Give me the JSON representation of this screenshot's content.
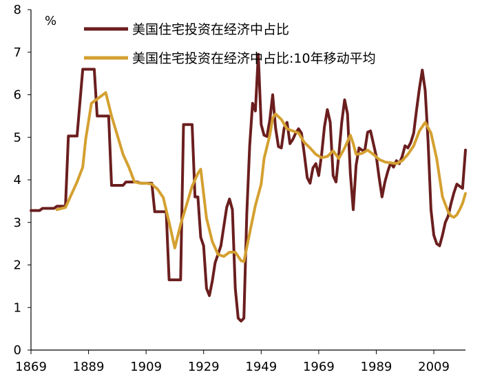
{
  "chart_data": {
    "type": "line",
    "y_unit": "%",
    "ylim": [
      0,
      8
    ],
    "xlim": [
      1869,
      2020
    ],
    "x_ticks": [
      1869,
      1889,
      1909,
      1929,
      1949,
      1969,
      1989,
      2009
    ],
    "y_ticks": [
      0,
      1,
      2,
      3,
      4,
      5,
      6,
      7,
      8
    ],
    "grid": false,
    "legend_position": "top",
    "colors": {
      "series_1": "#6b1e1e",
      "series_2": "#d4a030"
    },
    "series": [
      {
        "name": "美国住宅投资在经济中占比",
        "points": [
          [
            1869,
            3.28
          ],
          [
            1872,
            3.28
          ],
          [
            1873,
            3.33
          ],
          [
            1877,
            3.33
          ],
          [
            1878,
            3.38
          ],
          [
            1881,
            3.38
          ],
          [
            1882,
            5.03
          ],
          [
            1885,
            5.03
          ],
          [
            1887,
            6.6
          ],
          [
            1891,
            6.6
          ],
          [
            1892,
            5.5
          ],
          [
            1896,
            5.5
          ],
          [
            1897,
            3.87
          ],
          [
            1901,
            3.87
          ],
          [
            1902,
            3.95
          ],
          [
            1906,
            3.95
          ],
          [
            1907,
            3.92
          ],
          [
            1911,
            3.92
          ],
          [
            1912,
            3.25
          ],
          [
            1916,
            3.25
          ],
          [
            1917,
            1.65
          ],
          [
            1921,
            1.65
          ],
          [
            1922,
            5.3
          ],
          [
            1925,
            5.3
          ],
          [
            1926,
            3.6
          ],
          [
            1927,
            3.6
          ],
          [
            1928,
            2.65
          ],
          [
            1929,
            2.45
          ],
          [
            1930,
            1.45
          ],
          [
            1931,
            1.28
          ],
          [
            1932,
            1.62
          ],
          [
            1933,
            2.05
          ],
          [
            1934,
            2.25
          ],
          [
            1935,
            2.45
          ],
          [
            1936,
            2.9
          ],
          [
            1937,
            3.35
          ],
          [
            1938,
            3.55
          ],
          [
            1939,
            3.3
          ],
          [
            1940,
            1.45
          ],
          [
            1941,
            0.75
          ],
          [
            1942,
            0.68
          ],
          [
            1943,
            0.75
          ],
          [
            1944,
            3.2
          ],
          [
            1945,
            4.8
          ],
          [
            1946,
            5.8
          ],
          [
            1947,
            5.62
          ],
          [
            1948,
            6.95
          ],
          [
            1949,
            5.3
          ],
          [
            1950,
            5.05
          ],
          [
            1951,
            5.02
          ],
          [
            1952,
            5.4
          ],
          [
            1953,
            6.0
          ],
          [
            1954,
            5.22
          ],
          [
            1955,
            4.78
          ],
          [
            1956,
            4.75
          ],
          [
            1957,
            5.22
          ],
          [
            1958,
            5.35
          ],
          [
            1959,
            4.85
          ],
          [
            1960,
            4.95
          ],
          [
            1961,
            5.1
          ],
          [
            1962,
            5.2
          ],
          [
            1963,
            5.1
          ],
          [
            1964,
            4.6
          ],
          [
            1965,
            4.05
          ],
          [
            1966,
            3.92
          ],
          [
            1967,
            4.28
          ],
          [
            1968,
            4.38
          ],
          [
            1969,
            4.1
          ],
          [
            1970,
            4.6
          ],
          [
            1971,
            5.25
          ],
          [
            1972,
            5.65
          ],
          [
            1973,
            5.35
          ],
          [
            1974,
            4.1
          ],
          [
            1975,
            3.95
          ],
          [
            1976,
            4.6
          ],
          [
            1977,
            5.35
          ],
          [
            1978,
            5.88
          ],
          [
            1979,
            5.55
          ],
          [
            1980,
            4.15
          ],
          [
            1981,
            3.3
          ],
          [
            1982,
            4.35
          ],
          [
            1983,
            4.75
          ],
          [
            1984,
            4.7
          ],
          [
            1985,
            4.68
          ],
          [
            1986,
            5.12
          ],
          [
            1987,
            5.15
          ],
          [
            1988,
            4.85
          ],
          [
            1989,
            4.55
          ],
          [
            1990,
            4.05
          ],
          [
            1991,
            3.6
          ],
          [
            1992,
            3.95
          ],
          [
            1993,
            4.2
          ],
          [
            1994,
            4.4
          ],
          [
            1995,
            4.3
          ],
          [
            1996,
            4.45
          ],
          [
            1997,
            4.38
          ],
          [
            1998,
            4.55
          ],
          [
            1999,
            4.8
          ],
          [
            2000,
            4.75
          ],
          [
            2001,
            4.88
          ],
          [
            2002,
            5.1
          ],
          [
            2003,
            5.65
          ],
          [
            2004,
            6.15
          ],
          [
            2005,
            6.58
          ],
          [
            2006,
            6.1
          ],
          [
            2007,
            4.9
          ],
          [
            2008,
            3.3
          ],
          [
            2009,
            2.7
          ],
          [
            2010,
            2.5
          ],
          [
            2011,
            2.45
          ],
          [
            2012,
            2.7
          ],
          [
            2013,
            3.0
          ],
          [
            2014,
            3.15
          ],
          [
            2015,
            3.45
          ],
          [
            2016,
            3.7
          ],
          [
            2017,
            3.9
          ],
          [
            2018,
            3.85
          ],
          [
            2019,
            3.8
          ],
          [
            2020,
            4.7
          ]
        ]
      },
      {
        "name": "美国住宅投资在经济中占比:10年移动平均",
        "points": [
          [
            1878,
            3.3
          ],
          [
            1881,
            3.35
          ],
          [
            1883,
            3.65
          ],
          [
            1885,
            3.95
          ],
          [
            1887,
            4.3
          ],
          [
            1888,
            4.95
          ],
          [
            1890,
            5.8
          ],
          [
            1893,
            5.95
          ],
          [
            1895,
            6.05
          ],
          [
            1897,
            5.5
          ],
          [
            1899,
            5.05
          ],
          [
            1901,
            4.6
          ],
          [
            1903,
            4.3
          ],
          [
            1905,
            3.95
          ],
          [
            1907,
            3.92
          ],
          [
            1909,
            3.92
          ],
          [
            1911,
            3.9
          ],
          [
            1913,
            3.78
          ],
          [
            1915,
            3.58
          ],
          [
            1917,
            3.0
          ],
          [
            1919,
            2.4
          ],
          [
            1921,
            2.95
          ],
          [
            1923,
            3.4
          ],
          [
            1925,
            3.85
          ],
          [
            1927,
            4.15
          ],
          [
            1928,
            4.25
          ],
          [
            1930,
            3.1
          ],
          [
            1932,
            2.55
          ],
          [
            1934,
            2.25
          ],
          [
            1936,
            2.2
          ],
          [
            1938,
            2.3
          ],
          [
            1940,
            2.3
          ],
          [
            1942,
            2.1
          ],
          [
            1943,
            2.08
          ],
          [
            1945,
            2.75
          ],
          [
            1947,
            3.4
          ],
          [
            1949,
            3.9
          ],
          [
            1950,
            4.5
          ],
          [
            1952,
            5.05
          ],
          [
            1953,
            5.45
          ],
          [
            1954,
            5.55
          ],
          [
            1956,
            5.42
          ],
          [
            1958,
            5.2
          ],
          [
            1960,
            5.15
          ],
          [
            1962,
            5.1
          ],
          [
            1964,
            4.88
          ],
          [
            1966,
            4.75
          ],
          [
            1968,
            4.6
          ],
          [
            1970,
            4.52
          ],
          [
            1972,
            4.55
          ],
          [
            1974,
            4.68
          ],
          [
            1976,
            4.5
          ],
          [
            1978,
            4.75
          ],
          [
            1980,
            5.05
          ],
          [
            1981,
            4.85
          ],
          [
            1982,
            4.6
          ],
          [
            1984,
            4.62
          ],
          [
            1986,
            4.7
          ],
          [
            1988,
            4.6
          ],
          [
            1990,
            4.48
          ],
          [
            1992,
            4.42
          ],
          [
            1994,
            4.4
          ],
          [
            1996,
            4.38
          ],
          [
            1998,
            4.45
          ],
          [
            2000,
            4.6
          ],
          [
            2002,
            4.8
          ],
          [
            2004,
            5.15
          ],
          [
            2006,
            5.35
          ],
          [
            2008,
            5.1
          ],
          [
            2010,
            4.5
          ],
          [
            2012,
            3.6
          ],
          [
            2014,
            3.25
          ],
          [
            2015,
            3.15
          ],
          [
            2016,
            3.12
          ],
          [
            2017,
            3.18
          ],
          [
            2018,
            3.3
          ],
          [
            2019,
            3.45
          ],
          [
            2020,
            3.68
          ]
        ]
      }
    ]
  }
}
